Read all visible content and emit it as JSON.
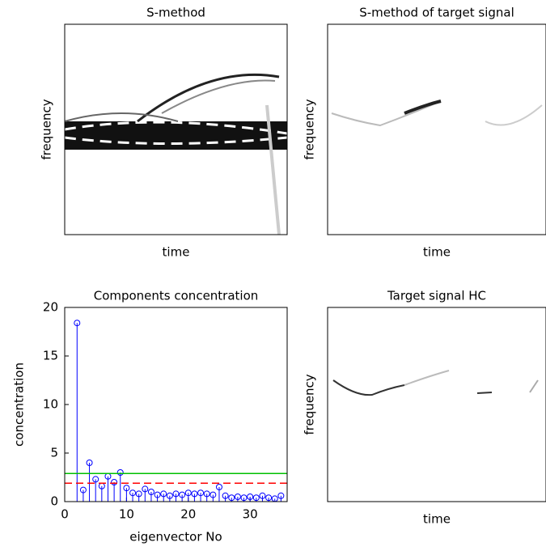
{
  "chart_data": [
    {
      "type": "image",
      "title": "S-method",
      "xlabel": "time",
      "ylabel": "frequency"
    },
    {
      "type": "image",
      "title": "S-method of target signal",
      "xlabel": "time",
      "ylabel": "frequency"
    },
    {
      "type": "stem",
      "title": "Components concentration",
      "xlabel": "eigenvector No",
      "ylabel": "concentration",
      "x": [
        2,
        3,
        4,
        5,
        6,
        7,
        8,
        9,
        10,
        11,
        12,
        13,
        14,
        15,
        16,
        17,
        18,
        19,
        20,
        21,
        22,
        23,
        24,
        25,
        26,
        27,
        28,
        29,
        30,
        31,
        32,
        33,
        34,
        35
      ],
      "series": [
        {
          "color": "#0000ff",
          "values": [
            18.4,
            1.2,
            4.0,
            2.3,
            1.6,
            2.6,
            2.0,
            3.0,
            1.4,
            0.9,
            0.8,
            1.3,
            1.0,
            0.7,
            0.8,
            0.6,
            0.8,
            0.7,
            0.9,
            0.8,
            0.9,
            0.8,
            0.7,
            1.5,
            0.6,
            0.4,
            0.5,
            0.4,
            0.5,
            0.4,
            0.6,
            0.4,
            0.3,
            0.6
          ]
        }
      ],
      "hlines": [
        {
          "value": 2.9,
          "color": "#00c000",
          "dash": false
        },
        {
          "value": 1.9,
          "color": "#ff0000",
          "dash": true
        }
      ],
      "xlim": [
        0,
        36
      ],
      "ylim": [
        0,
        20
      ],
      "xticks": [
        0,
        10,
        20,
        30
      ],
      "yticks": [
        0,
        5,
        10,
        15,
        20
      ]
    },
    {
      "type": "image",
      "title": "Target signal HC",
      "xlabel": "time",
      "ylabel": "frequency"
    }
  ]
}
